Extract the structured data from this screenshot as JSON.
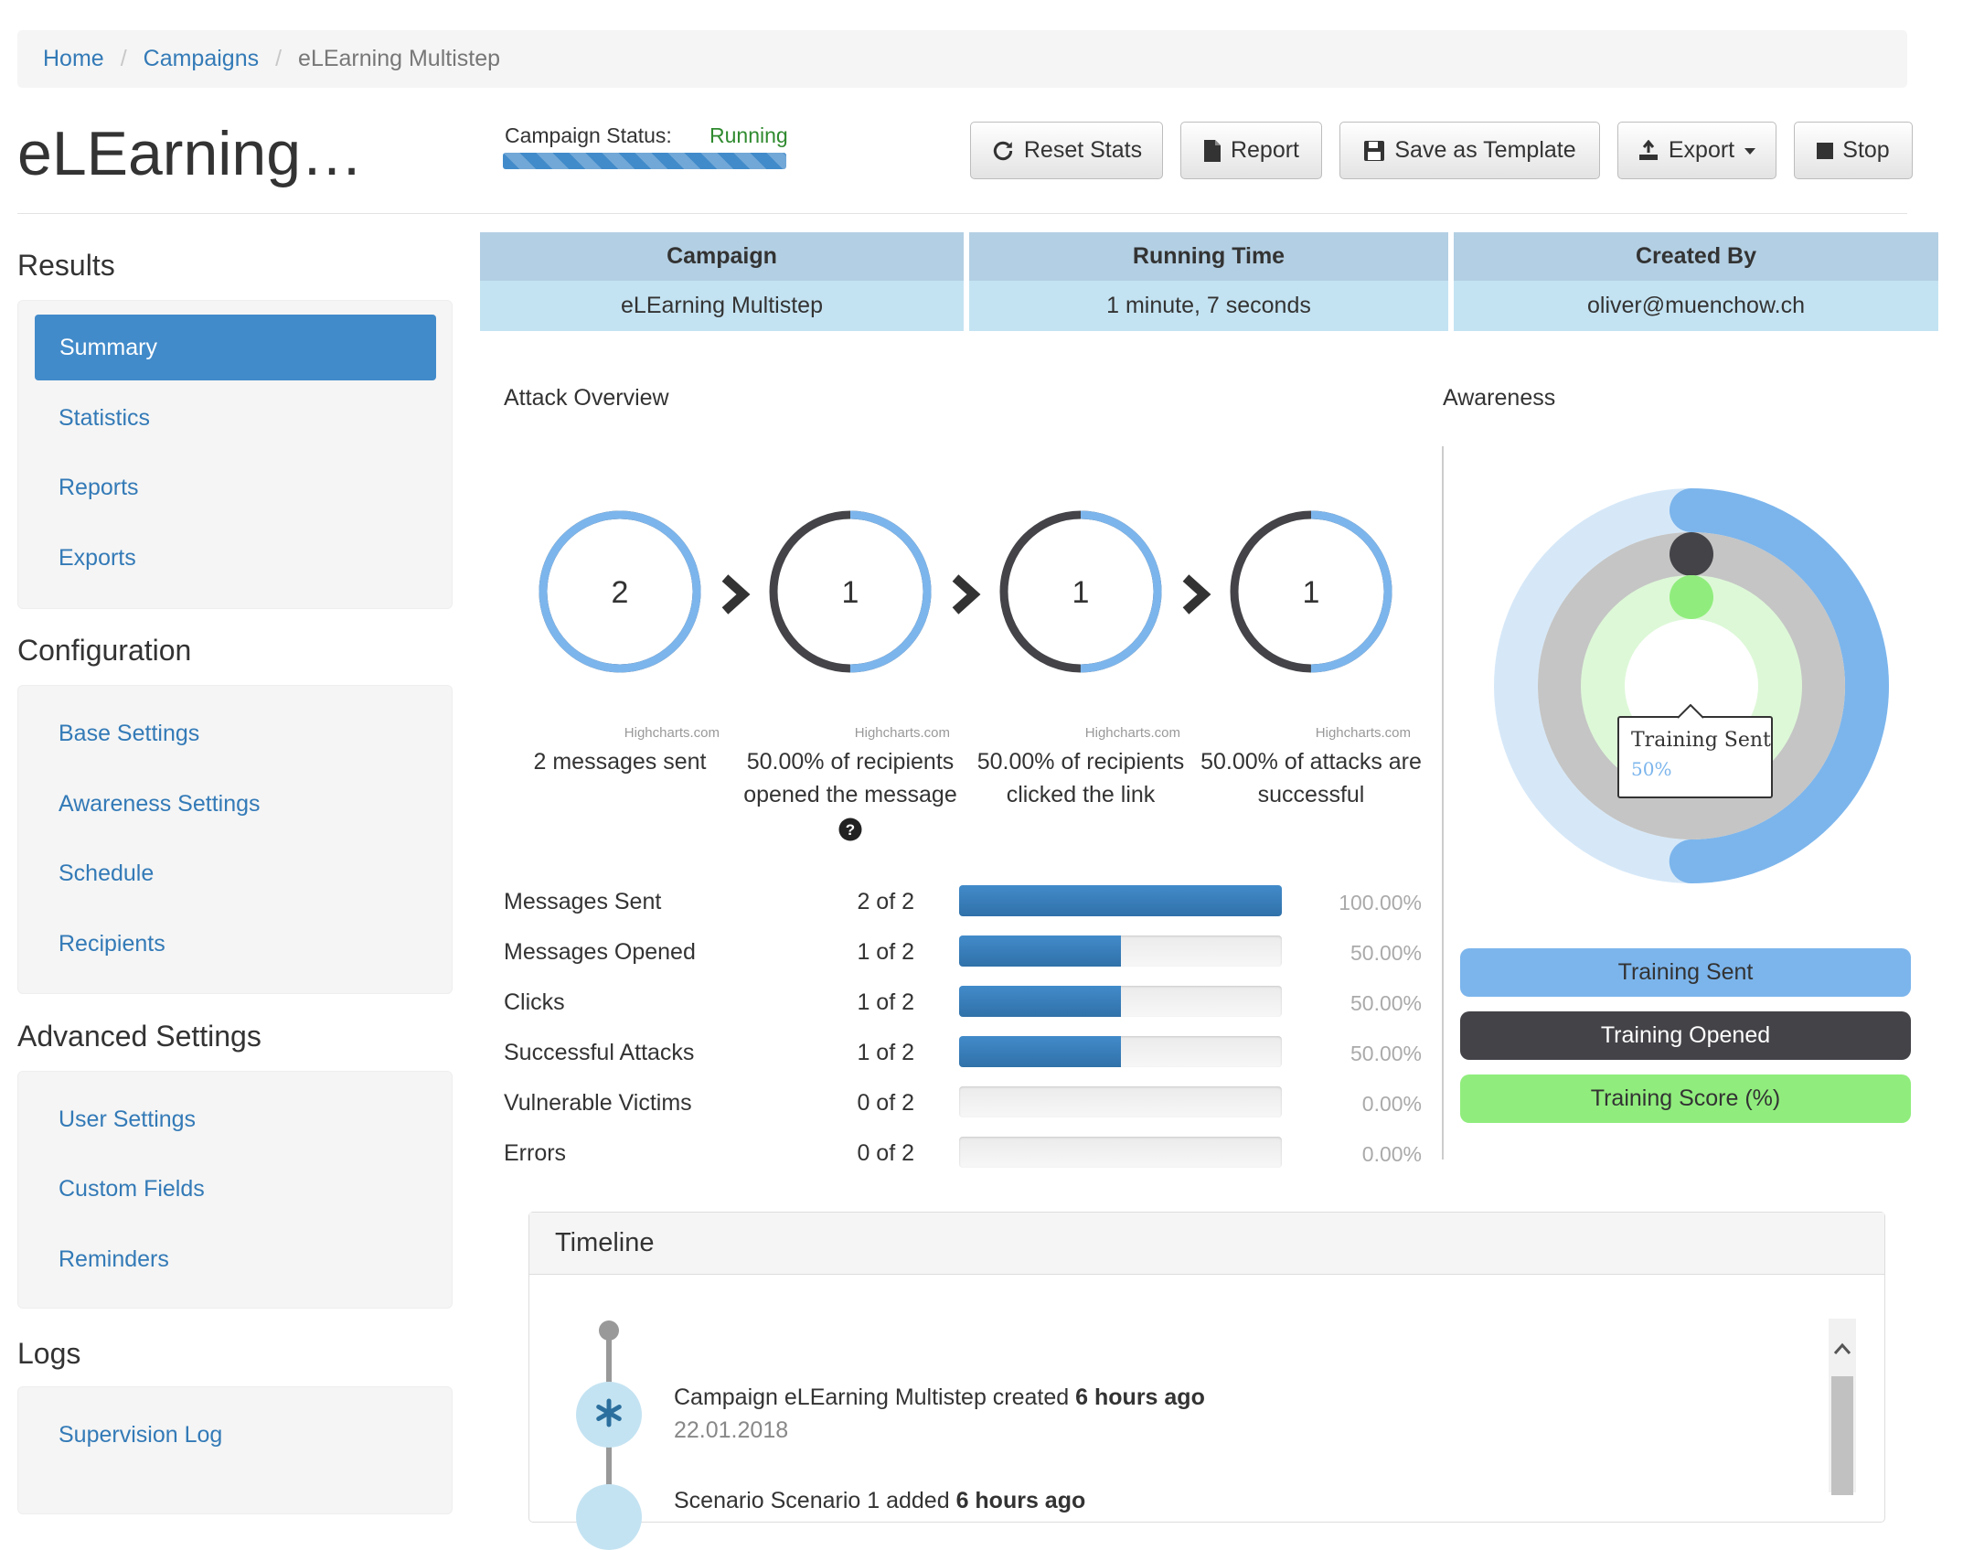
{
  "breadcrumb": {
    "home": "Home",
    "sep": "/",
    "campaigns": "Campaigns",
    "current": "eLEarning Multistep"
  },
  "page_title": "eLEarning…",
  "status": {
    "label": "Campaign Status:",
    "value": "Running",
    "value_color": "#2f8a2f"
  },
  "toolbar": {
    "reset_stats": "Reset Stats",
    "report": "Report",
    "save_template": "Save as Template",
    "export": "Export",
    "stop": "Stop"
  },
  "sidebar": {
    "results": {
      "heading": "Results",
      "items": [
        "Summary",
        "Statistics",
        "Reports",
        "Exports"
      ]
    },
    "configuration": {
      "heading": "Configuration",
      "items": [
        "Base Settings",
        "Awareness Settings",
        "Schedule",
        "Recipients"
      ]
    },
    "advanced": {
      "heading": "Advanced Settings",
      "items": [
        "User Settings",
        "Custom Fields",
        "Reminders"
      ]
    },
    "logs": {
      "heading": "Logs",
      "items": [
        "Supervision Log"
      ]
    }
  },
  "info": {
    "headers": [
      "Campaign",
      "Running Time",
      "Created By"
    ],
    "values": [
      "eLEarning Multistep",
      "1 minute, 7 seconds",
      "oliver@muenchow.ch"
    ]
  },
  "attack_overview": {
    "title": "Attack Overview",
    "credit": "Highcharts.com",
    "steps": [
      {
        "count": "2",
        "fraction": 1.0,
        "label": "2 messages sent"
      },
      {
        "count": "1",
        "fraction": 0.5,
        "label": "50.00% of recipients opened the message"
      },
      {
        "count": "1",
        "fraction": 0.5,
        "label": "50.00% of recipients clicked the link"
      },
      {
        "count": "1",
        "fraction": 0.5,
        "label": "50.00% of attacks are successful"
      }
    ]
  },
  "stats": {
    "rows": [
      {
        "label": "Messages Sent",
        "count": "2 of 2",
        "fraction": 1.0,
        "pct": "100.00%"
      },
      {
        "label": "Messages Opened",
        "count": "1 of 2",
        "fraction": 0.5,
        "pct": "50.00%"
      },
      {
        "label": "Clicks",
        "count": "1 of 2",
        "fraction": 0.5,
        "pct": "50.00%"
      },
      {
        "label": "Successful Attacks",
        "count": "1 of 2",
        "fraction": 0.5,
        "pct": "50.00%"
      },
      {
        "label": "Vulnerable Victims",
        "count": "0 of 2",
        "fraction": 0.0,
        "pct": "0.00%"
      },
      {
        "label": "Errors",
        "count": "0 of 2",
        "fraction": 0.0,
        "pct": "0.00%"
      }
    ]
  },
  "awareness": {
    "title": "Awareness",
    "tooltip_label": "Training Sent",
    "tooltip_value": "50%",
    "legend": [
      {
        "label": "Training Sent",
        "color": "#7cb5ec",
        "text_color": "#333333"
      },
      {
        "label": "Training Opened",
        "color": "#434348",
        "text_color": "#ffffff"
      },
      {
        "label": "Training Score (%)",
        "color": "#90ed7d",
        "text_color": "#333333"
      }
    ]
  },
  "chart_data": {
    "type": "pie",
    "title": "Awareness",
    "series": [
      {
        "name": "Training Sent",
        "values": [
          50
        ]
      },
      {
        "name": "Training Opened",
        "values": [
          0
        ]
      },
      {
        "name": "Training Score (%)",
        "values": [
          0
        ]
      }
    ]
  },
  "timeline": {
    "title": "Timeline",
    "events": [
      {
        "text": "Campaign eLEarning Multistep created",
        "when": "6 hours ago",
        "date": "22.01.2018"
      },
      {
        "text": "Scenario Scenario 1 added",
        "when": "6 hours ago",
        "date": ""
      }
    ]
  },
  "colors": {
    "primary": "#428bca",
    "link": "#337ab7",
    "series_blue": "#7cb5ec",
    "series_dark": "#434348",
    "series_green": "#90ed7d"
  }
}
